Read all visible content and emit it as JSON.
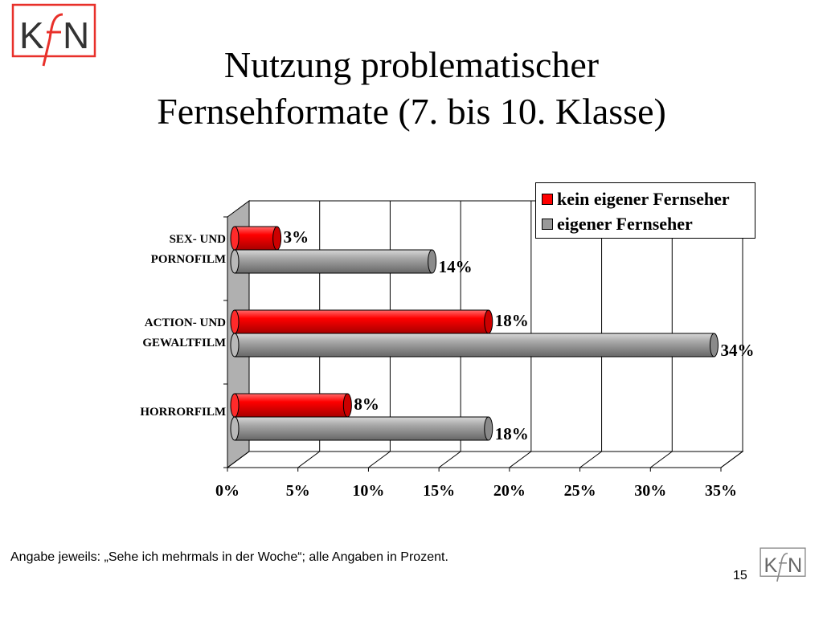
{
  "slide": {
    "logo_text": "KfN",
    "title_line1": "Nutzung problematischer",
    "title_line2": "Fernsehformate (7. bis 10. Klasse)",
    "footnote": "Angabe jeweils: „Sehe ich mehrmals in der Woche“; alle Angaben in Prozent.",
    "page_number": "15"
  },
  "chart_data": {
    "type": "bar",
    "orientation": "horizontal",
    "style": "3d-cylinder",
    "categories": [
      [
        "SEX- UND",
        "PORNOFILM"
      ],
      [
        "ACTION- UND",
        "GEWALTFILM"
      ],
      [
        "HORRORFILM"
      ]
    ],
    "series": [
      {
        "name": "kein eigener Fernseher",
        "color": "#ff0000",
        "values": [
          3,
          18,
          8
        ],
        "labels": [
          "3%",
          "18%",
          "8%"
        ]
      },
      {
        "name": "eigener Fernseher",
        "color": "#999999",
        "values": [
          14,
          34,
          18
        ],
        "labels": [
          "14%",
          "34%",
          "18%"
        ]
      }
    ],
    "x_ticks": [
      "0%",
      "5%",
      "10%",
      "15%",
      "20%",
      "25%",
      "30%",
      "35%"
    ],
    "xlim": [
      0,
      35
    ],
    "grid": true,
    "legend_position": "top-right"
  }
}
